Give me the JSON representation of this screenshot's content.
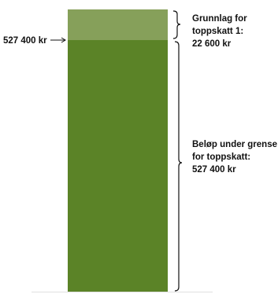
{
  "threshold_label": "527 400 kr",
  "groups": [
    {
      "lines": [
        "Grunnlag for",
        "toppskatt 1:",
        "22 600 kr"
      ]
    },
    {
      "lines": [
        "Beløp under grense",
        "for toppskatt:",
        "527 400 kr"
      ]
    }
  ],
  "colors": {
    "upper_segment": "#86a05a",
    "lower_segment": "#5b8327",
    "text": "#111111"
  }
}
